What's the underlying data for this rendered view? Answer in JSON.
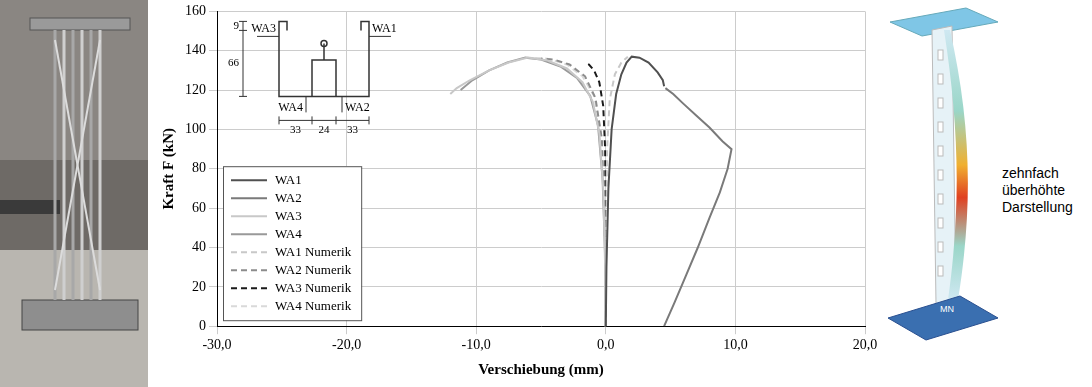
{
  "chart_data": {
    "type": "line",
    "x_label": "Verschiebung (mm)",
    "y_label": "Kraft F (kN)",
    "xlim": [
      -30,
      20
    ],
    "xticks": [
      {
        "value": -30,
        "label": "-30,0"
      },
      {
        "value": -20,
        "label": "-20,0"
      },
      {
        "value": -10,
        "label": "-10,0"
      },
      {
        "value": 0,
        "label": "0,0"
      },
      {
        "value": 10,
        "label": "10,0"
      },
      {
        "value": 20,
        "label": "20,0"
      }
    ],
    "ylim": [
      0,
      160
    ],
    "yticks": [
      0,
      20,
      40,
      60,
      80,
      100,
      120,
      140,
      160
    ],
    "grid": true,
    "legend": "lower left",
    "series": [
      {
        "name": "WA1",
        "color": "#505050",
        "line_style": "solid",
        "x": [
          0,
          0.05,
          0.2,
          0.45,
          0.8,
          1.2,
          1.6,
          2.0,
          2.6,
          3.3,
          4.0,
          4.4,
          4.5
        ],
        "values": [
          0,
          30,
          70,
          100,
          118,
          128,
          134,
          137,
          136.5,
          134,
          129,
          125,
          122
        ]
      },
      {
        "name": "WA2",
        "color": "#7a7a7a",
        "line_style": "solid",
        "x": [
          4.5,
          5.3,
          6.2,
          7.1,
          8.0,
          8.8,
          9.4,
          9.7,
          9.0,
          8.0,
          7.0,
          6.0,
          5.2,
          4.6
        ],
        "values": [
          0,
          12,
          26,
          40,
          55,
          68,
          80,
          90,
          94,
          101,
          107,
          113,
          118,
          121
        ]
      },
      {
        "name": "WA3",
        "color": "#c8c8c8",
        "line_style": "solid",
        "x": [
          0,
          -0.05,
          -0.2,
          -0.5,
          -1.0,
          -1.8,
          -3.0,
          -4.5,
          -6.0,
          -7.5,
          -9.0,
          -10.5,
          -11.5,
          -12.0
        ],
        "values": [
          0,
          30,
          70,
          98,
          114,
          124,
          131,
          135,
          136.5,
          134,
          130,
          125,
          121,
          118
        ]
      },
      {
        "name": "WA4",
        "color": "#999999",
        "line_style": "solid",
        "x": [
          0,
          -0.05,
          -0.25,
          -0.6,
          -1.2,
          -2.2,
          -3.5,
          -5.0,
          -6.2,
          -7.6,
          -9.0,
          -10.3,
          -11.2
        ],
        "values": [
          0,
          35,
          75,
          102,
          117,
          126,
          132,
          135.5,
          136.5,
          134,
          130,
          125,
          120
        ]
      },
      {
        "name": "WA1 Numerik",
        "color": "#c8c8c8",
        "line_style": "dashed",
        "x": [
          0,
          0.02,
          0.1,
          0.3,
          0.7,
          1.2,
          1.7
        ],
        "values": [
          0,
          40,
          90,
          115,
          128,
          134,
          137
        ]
      },
      {
        "name": "WA2 Numerik",
        "color": "#8c8c8c",
        "line_style": "dashed",
        "x": [
          0,
          -0.05,
          -0.3,
          -0.8,
          -1.6,
          -2.8,
          -4.0,
          -5.0
        ],
        "values": [
          0,
          40,
          95,
          116,
          127,
          133,
          135.5,
          136
        ]
      },
      {
        "name": "WA3 Numerik",
        "color": "#1a1a1a",
        "line_style": "dashed",
        "x": [
          0,
          0,
          -0.05,
          -0.2,
          -0.5,
          -0.9,
          -1.3,
          -1.6
        ],
        "values": [
          0,
          50,
          90,
          112,
          124,
          130,
          133,
          134
        ]
      },
      {
        "name": "WA4 Numerik",
        "color": "#d9d9d9",
        "line_style": "dashed",
        "x": [
          0,
          -0.05,
          -0.3,
          -0.9,
          -1.8,
          -3.0,
          -4.5,
          -5.8
        ],
        "values": [
          0,
          40,
          95,
          117,
          127,
          133,
          136,
          136.5
        ]
      }
    ],
    "inset": {
      "labels": {
        "top_left": "WA3",
        "top_right": "WA1",
        "bottom_left": "WA4",
        "bottom_right": "WA2"
      },
      "dimensions": {
        "lip": 9,
        "height": 66,
        "widths": [
          33,
          24,
          33
        ]
      }
    }
  },
  "render": {
    "labels": [
      "MN"
    ],
    "annotation": "zehnfach überhöhte Darstellung"
  }
}
